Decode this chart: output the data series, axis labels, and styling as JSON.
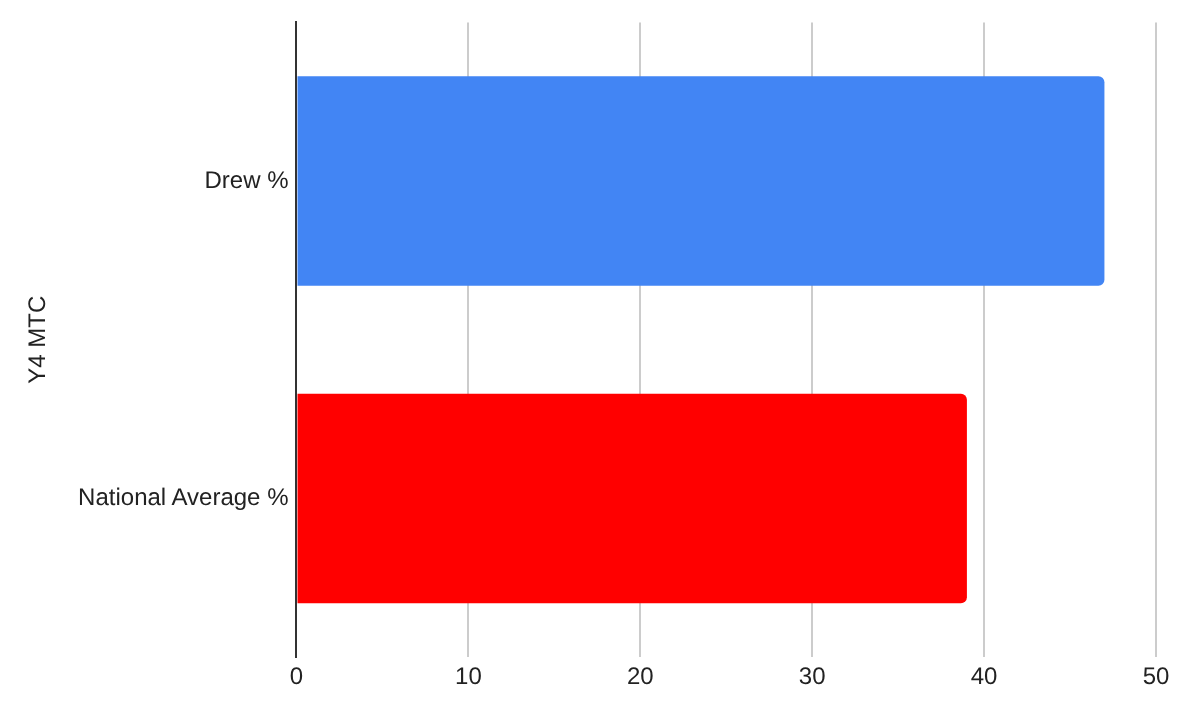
{
  "chart_data": {
    "type": "bar",
    "orientation": "horizontal",
    "ylabel": "Y4 MTC",
    "categories": [
      "Drew %",
      "National Average %"
    ],
    "values": [
      47,
      39
    ],
    "colors": [
      "#4285f4",
      "#ff0000"
    ],
    "xlim": [
      0,
      50
    ],
    "xticks": [
      0,
      10,
      20,
      30,
      40,
      50
    ],
    "grid": "x",
    "legend": false
  }
}
